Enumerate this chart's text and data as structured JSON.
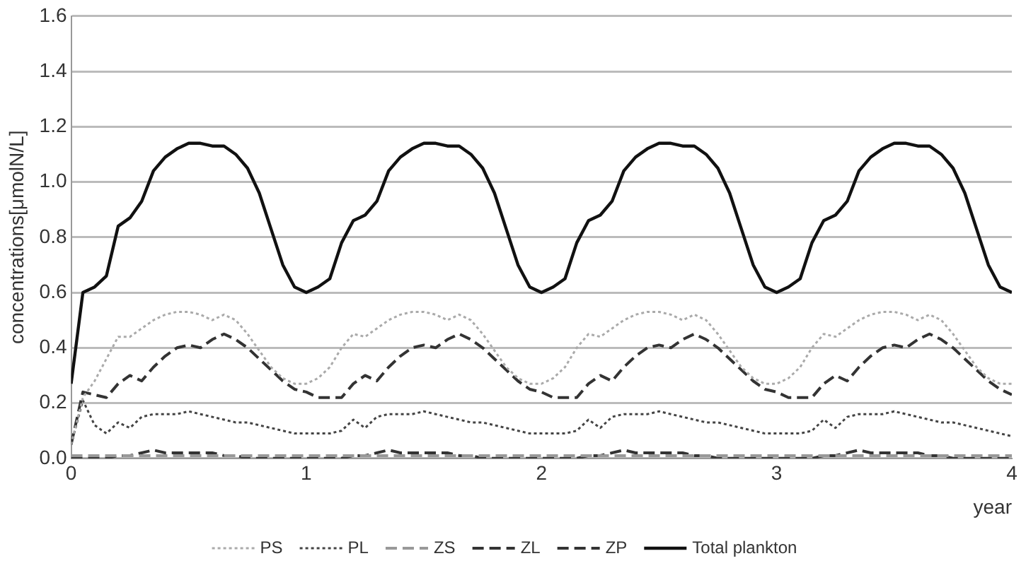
{
  "chart_data": {
    "type": "line",
    "ylabel": "concentrations[μmolN/L]",
    "xlabel": "year",
    "xlim": [
      0,
      4
    ],
    "xticks": [
      0,
      1,
      2,
      3,
      4
    ],
    "ylim": [
      0,
      1.6
    ],
    "yticks": [
      {
        "value": 0,
        "label": "0.0"
      },
      0.2,
      0.4,
      0.6,
      0.8,
      {
        "value": 1,
        "label": "1.0"
      },
      1.2,
      1.4,
      1.6
    ],
    "grid": "y",
    "legend": "bottom",
    "marker": "none",
    "x": [
      0,
      0.05,
      0.1,
      0.15,
      0.2,
      0.25,
      0.3,
      0.35,
      0.4,
      0.45,
      0.5,
      0.55,
      0.6,
      0.65,
      0.7,
      0.75,
      0.8,
      0.85,
      0.9,
      0.95,
      1,
      1.05,
      1.1,
      1.15,
      1.2,
      1.25,
      1.3,
      1.35,
      1.4,
      1.45,
      1.5,
      1.55,
      1.6,
      1.65,
      1.7,
      1.75,
      1.8,
      1.85,
      1.9,
      1.95,
      2,
      2.05,
      2.1,
      2.15,
      2.2,
      2.25,
      2.3,
      2.35,
      2.4,
      2.45,
      2.5,
      2.55,
      2.6,
      2.65,
      2.7,
      2.75,
      2.8,
      2.85,
      2.9,
      2.95,
      3,
      3.05,
      3.1,
      3.15,
      3.2,
      3.25,
      3.3,
      3.35,
      3.4,
      3.45,
      3.5,
      3.55,
      3.6,
      3.65,
      3.7,
      3.75,
      3.8,
      3.85,
      3.9,
      3.95,
      4
    ],
    "series": [
      {
        "name": "PS",
        "color": "#aaaaaa",
        "line_style": "dotted",
        "values": [
          0.05,
          0.22,
          0.28,
          0.36,
          0.44,
          0.44,
          0.47,
          0.5,
          0.52,
          0.53,
          0.53,
          0.52,
          0.5,
          0.52,
          0.5,
          0.45,
          0.39,
          0.33,
          0.29,
          0.27,
          0.27,
          0.29,
          0.33,
          0.4,
          0.45,
          0.44,
          0.47,
          0.5,
          0.52,
          0.53,
          0.53,
          0.52,
          0.5,
          0.52,
          0.5,
          0.45,
          0.39,
          0.33,
          0.29,
          0.27,
          0.27,
          0.29,
          0.33,
          0.4,
          0.45,
          0.44,
          0.47,
          0.5,
          0.52,
          0.53,
          0.53,
          0.52,
          0.5,
          0.52,
          0.5,
          0.45,
          0.39,
          0.33,
          0.29,
          0.27,
          0.27,
          0.29,
          0.33,
          0.4,
          0.45,
          0.44,
          0.47,
          0.5,
          0.52,
          0.53,
          0.53,
          0.52,
          0.5,
          0.52,
          0.5,
          0.45,
          0.39,
          0.33,
          0.29,
          0.27,
          0.27
        ]
      },
      {
        "name": "PL",
        "color": "#444444",
        "line_style": "dotted",
        "values": [
          0.05,
          0.21,
          0.12,
          0.09,
          0.13,
          0.11,
          0.15,
          0.16,
          0.16,
          0.16,
          0.17,
          0.16,
          0.15,
          0.14,
          0.13,
          0.13,
          0.12,
          0.11,
          0.1,
          0.09,
          0.09,
          0.09,
          0.09,
          0.1,
          0.14,
          0.11,
          0.15,
          0.16,
          0.16,
          0.16,
          0.17,
          0.16,
          0.15,
          0.14,
          0.13,
          0.13,
          0.12,
          0.11,
          0.1,
          0.09,
          0.09,
          0.09,
          0.09,
          0.1,
          0.14,
          0.11,
          0.15,
          0.16,
          0.16,
          0.16,
          0.17,
          0.16,
          0.15,
          0.14,
          0.13,
          0.13,
          0.12,
          0.11,
          0.1,
          0.09,
          0.09,
          0.09,
          0.09,
          0.1,
          0.14,
          0.11,
          0.15,
          0.16,
          0.16,
          0.16,
          0.17,
          0.16,
          0.15,
          0.14,
          0.13,
          0.13,
          0.12,
          0.11,
          0.1,
          0.09,
          0.08
        ]
      },
      {
        "name": "ZS",
        "color": "#999999",
        "line_style": "dashed",
        "values": [
          0.01,
          0.01,
          0.01,
          0.01,
          0.01,
          0.01,
          0.01,
          0.01,
          0.01,
          0.01,
          0.01,
          0.01,
          0.01,
          0.01,
          0.01,
          0.01,
          0.01,
          0.01,
          0.01,
          0.01,
          0.01,
          0.01,
          0.01,
          0.01,
          0.01,
          0.01,
          0.01,
          0.01,
          0.01,
          0.01,
          0.01,
          0.01,
          0.01,
          0.01,
          0.01,
          0.01,
          0.01,
          0.01,
          0.01,
          0.01,
          0.01,
          0.01,
          0.01,
          0.01,
          0.01,
          0.01,
          0.01,
          0.01,
          0.01,
          0.01,
          0.01,
          0.01,
          0.01,
          0.01,
          0.01,
          0.01,
          0.01,
          0.01,
          0.01,
          0.01,
          0.01,
          0.01,
          0.01,
          0.01,
          0.01,
          0.01,
          0.01,
          0.01,
          0.01,
          0.01,
          0.01,
          0.01,
          0.01,
          0.01,
          0.01,
          0.01,
          0.01,
          0.01,
          0.01,
          0.01,
          0.01
        ]
      },
      {
        "name": "ZL",
        "color": "#333333",
        "line_style": "dashed",
        "values": [
          0.0,
          0.0,
          0.0,
          0.0,
          0.01,
          0.01,
          0.02,
          0.03,
          0.02,
          0.02,
          0.02,
          0.02,
          0.02,
          0.01,
          0.01,
          0.0,
          0.0,
          0.0,
          0.0,
          0.0,
          0.0,
          0.0,
          0.0,
          0.0,
          0.01,
          0.01,
          0.02,
          0.03,
          0.02,
          0.02,
          0.02,
          0.02,
          0.02,
          0.01,
          0.01,
          0.0,
          0.0,
          0.0,
          0.0,
          0.0,
          0.0,
          0.0,
          0.0,
          0.0,
          0.01,
          0.01,
          0.02,
          0.03,
          0.02,
          0.02,
          0.02,
          0.02,
          0.02,
          0.01,
          0.01,
          0.0,
          0.0,
          0.0,
          0.0,
          0.0,
          0.0,
          0.0,
          0.0,
          0.0,
          0.01,
          0.01,
          0.02,
          0.03,
          0.02,
          0.02,
          0.02,
          0.02,
          0.02,
          0.01,
          0.01,
          0.0,
          0.0,
          0.0,
          0.0,
          0.0,
          0.0
        ]
      },
      {
        "name": "ZP",
        "color": "#333333",
        "line_style": "dashed",
        "values": [
          0.05,
          0.24,
          0.23,
          0.22,
          0.27,
          0.3,
          0.28,
          0.33,
          0.37,
          0.4,
          0.41,
          0.4,
          0.43,
          0.45,
          0.43,
          0.4,
          0.36,
          0.32,
          0.28,
          0.25,
          0.24,
          0.22,
          0.22,
          0.22,
          0.27,
          0.3,
          0.28,
          0.33,
          0.37,
          0.4,
          0.41,
          0.4,
          0.43,
          0.45,
          0.43,
          0.4,
          0.36,
          0.32,
          0.28,
          0.25,
          0.24,
          0.22,
          0.22,
          0.22,
          0.27,
          0.3,
          0.28,
          0.33,
          0.37,
          0.4,
          0.41,
          0.4,
          0.43,
          0.45,
          0.43,
          0.4,
          0.36,
          0.32,
          0.28,
          0.25,
          0.24,
          0.22,
          0.22,
          0.22,
          0.27,
          0.3,
          0.28,
          0.33,
          0.37,
          0.4,
          0.41,
          0.4,
          0.43,
          0.45,
          0.43,
          0.4,
          0.36,
          0.32,
          0.28,
          0.25,
          0.23
        ]
      },
      {
        "name": "Total plankton",
        "color": "#111111",
        "line_style": "solid",
        "values": [
          0.27,
          0.6,
          0.62,
          0.66,
          0.84,
          0.87,
          0.93,
          1.04,
          1.09,
          1.12,
          1.14,
          1.14,
          1.13,
          1.13,
          1.1,
          1.05,
          0.96,
          0.83,
          0.7,
          0.62,
          0.6,
          0.62,
          0.65,
          0.78,
          0.86,
          0.88,
          0.93,
          1.04,
          1.09,
          1.12,
          1.14,
          1.14,
          1.13,
          1.13,
          1.1,
          1.05,
          0.96,
          0.83,
          0.7,
          0.62,
          0.6,
          0.62,
          0.65,
          0.78,
          0.86,
          0.88,
          0.93,
          1.04,
          1.09,
          1.12,
          1.14,
          1.14,
          1.13,
          1.13,
          1.1,
          1.05,
          0.96,
          0.83,
          0.7,
          0.62,
          0.6,
          0.62,
          0.65,
          0.78,
          0.86,
          0.88,
          0.93,
          1.04,
          1.09,
          1.12,
          1.14,
          1.14,
          1.13,
          1.13,
          1.1,
          1.05,
          0.96,
          0.83,
          0.7,
          0.62,
          0.6
        ]
      }
    ]
  }
}
